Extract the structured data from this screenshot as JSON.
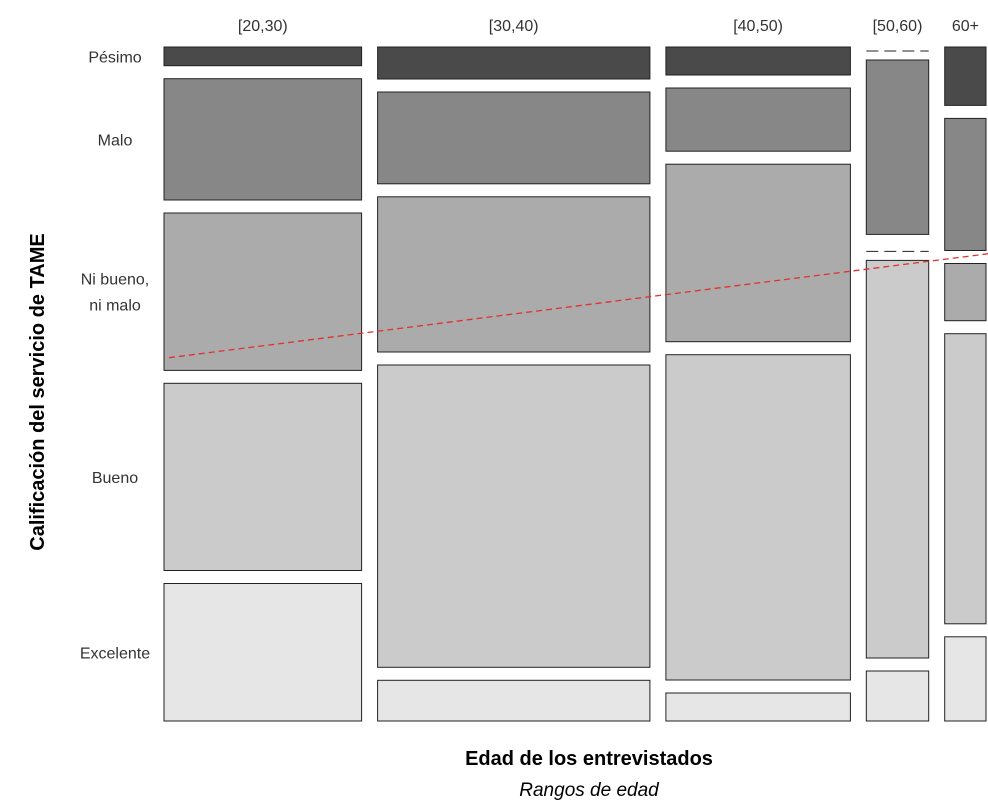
{
  "chart_data": {
    "type": "mosaic",
    "xlabel": "Edad de los entrevistados",
    "subtitle": "Rangos de edad",
    "ylabel": "Calificación del servicio de TAME",
    "columns": [
      {
        "label": "[20,30)",
        "share": 0.2565
      },
      {
        "label": "[30,40)",
        "share": 0.3535
      },
      {
        "label": "[40,50)",
        "share": 0.2395
      },
      {
        "label": "[50,60)",
        "share": 0.081
      },
      {
        "label": "60+",
        "share": 0.0536
      }
    ],
    "categories": [
      "Pésimo",
      "Malo",
      "Ni  bueno,\nni malo",
      "Bueno",
      "Excelente"
    ],
    "rows": [
      {
        "label": "Pésimo",
        "label_lines": [
          "Pésimo"
        ],
        "color": "#4a4a4a"
      },
      {
        "label": "Malo",
        "label_lines": [
          "Malo"
        ],
        "color": "#878787"
      },
      {
        "label": "Ni bueno, ni malo",
        "label_lines": [
          "Ni  bueno,",
          "ni malo"
        ],
        "color": "#ababab"
      },
      {
        "label": "Bueno",
        "label_lines": [
          "Bueno"
        ],
        "color": "#cbcbcb"
      },
      {
        "label": "Excelente",
        "label_lines": [
          "Excelente"
        ],
        "color": "#e6e6e6"
      }
    ],
    "proportions": [
      [
        0.03,
        0.195,
        0.253,
        0.301,
        0.221
      ],
      [
        0.055,
        0.158,
        0.267,
        0.52,
        0.07
      ],
      [
        0.046,
        0.104,
        0.292,
        0.535,
        0.046
      ],
      [
        0.0,
        0.286,
        0.0,
        0.652,
        0.082
      ],
      [
        0.095,
        0.215,
        0.093,
        0.472,
        0.137
      ]
    ],
    "trend_line": {
      "color": "#e03030",
      "style": "dashed",
      "from_column": 0,
      "to_column": 4
    }
  }
}
